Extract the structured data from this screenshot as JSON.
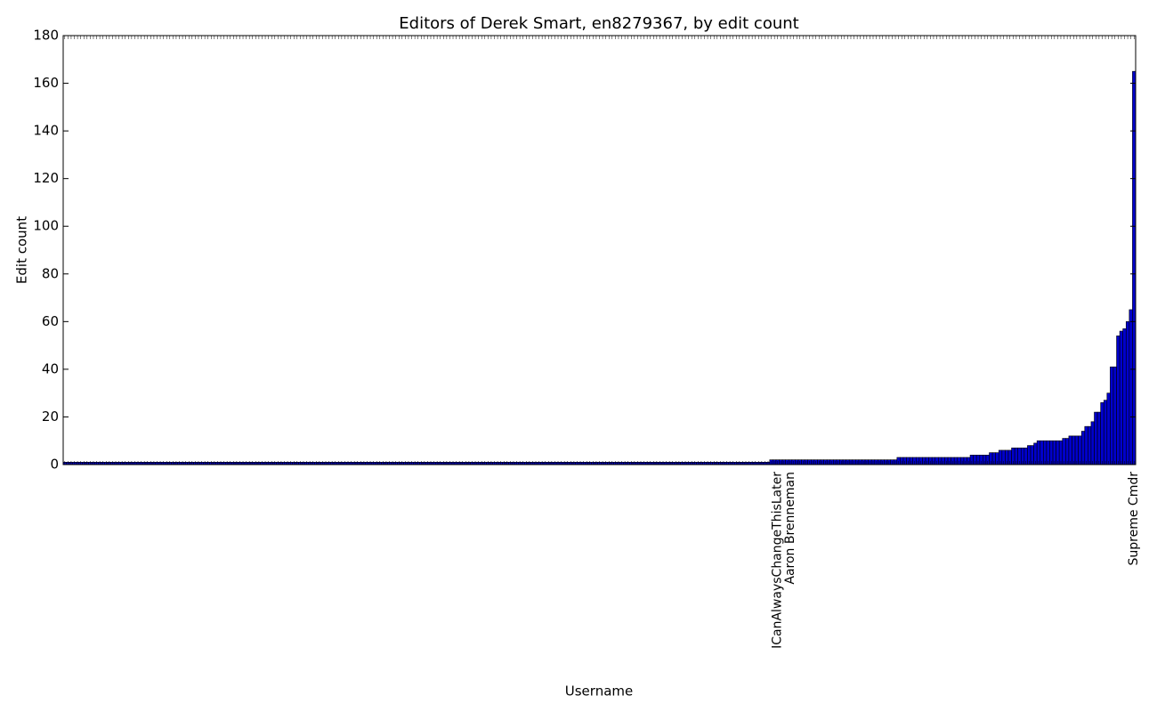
{
  "chart_data": {
    "type": "bar",
    "title": "Editors of Derek Smart, en8279367, by edit count",
    "x_label": "Username",
    "y_label": "Edit count",
    "color": "#0000cc",
    "edgecolor": "#000000",
    "ylim": [
      0,
      180
    ],
    "yticks": [
      0,
      20,
      40,
      60,
      80,
      100,
      120,
      140,
      160,
      180
    ],
    "grid": false,
    "categories": [
      null,
      null,
      null,
      null,
      null,
      null,
      null,
      null,
      null,
      null,
      null,
      null,
      null,
      null,
      null,
      null,
      null,
      null,
      null,
      null,
      null,
      null,
      null,
      null,
      null,
      null,
      null,
      null,
      null,
      null,
      null,
      null,
      null,
      null,
      null,
      null,
      null,
      null,
      null,
      null,
      null,
      null,
      null,
      null,
      null,
      null,
      null,
      null,
      null,
      null,
      null,
      null,
      null,
      null,
      null,
      null,
      null,
      null,
      null,
      null,
      null,
      null,
      null,
      null,
      null,
      null,
      null,
      null,
      null,
      null,
      null,
      null,
      null,
      null,
      null,
      null,
      null,
      null,
      null,
      null,
      null,
      null,
      null,
      null,
      null,
      null,
      null,
      null,
      null,
      null,
      null,
      null,
      null,
      null,
      null,
      null,
      null,
      null,
      null,
      null,
      null,
      null,
      null,
      null,
      null,
      null,
      null,
      null,
      null,
      null,
      null,
      null,
      null,
      null,
      null,
      null,
      null,
      null,
      null,
      null,
      null,
      null,
      null,
      null,
      null,
      null,
      null,
      null,
      null,
      null,
      null,
      null,
      null,
      null,
      null,
      null,
      null,
      null,
      null,
      null,
      null,
      null,
      null,
      null,
      null,
      null,
      null,
      null,
      null,
      null,
      null,
      null,
      null,
      null,
      null,
      null,
      null,
      null,
      null,
      null,
      null,
      null,
      null,
      null,
      null,
      null,
      null,
      null,
      null,
      null,
      null,
      null,
      null,
      null,
      null,
      null,
      null,
      null,
      null,
      null,
      null,
      null,
      null,
      null,
      null,
      null,
      null,
      null,
      null,
      null,
      null,
      null,
      null,
      null,
      null,
      null,
      null,
      null,
      null,
      null,
      null,
      null,
      null,
      null,
      null,
      null,
      null,
      null,
      null,
      null,
      null,
      null,
      null,
      null,
      null,
      null,
      null,
      null,
      null,
      null,
      null,
      null,
      null,
      null,
      "ICanAlwaysChangeThisLater",
      null,
      null,
      null,
      "Aaron Brenneman",
      null,
      null,
      null,
      null,
      null,
      null,
      null,
      null,
      null,
      null,
      null,
      null,
      null,
      null,
      null,
      null,
      null,
      null,
      null,
      null,
      null,
      null,
      null,
      null,
      null,
      null,
      null,
      null,
      null,
      null,
      null,
      null,
      null,
      null,
      null,
      null,
      null,
      null,
      null,
      null,
      null,
      null,
      null,
      null,
      null,
      null,
      null,
      null,
      null,
      null,
      null,
      null,
      null,
      null,
      null,
      null,
      null,
      null,
      null,
      null,
      null,
      null,
      null,
      null,
      null,
      null,
      null,
      null,
      null,
      null,
      null,
      null,
      null,
      null,
      null,
      null,
      null,
      null,
      null,
      null,
      null,
      null,
      null,
      null,
      null,
      null,
      null,
      null,
      null,
      null,
      null,
      null,
      null,
      null,
      null,
      null,
      null,
      null,
      null,
      null,
      null,
      null,
      null,
      null,
      null,
      null,
      null,
      "Supreme Cmdr"
    ],
    "values": [
      1,
      1,
      1,
      1,
      1,
      1,
      1,
      1,
      1,
      1,
      1,
      1,
      1,
      1,
      1,
      1,
      1,
      1,
      1,
      1,
      1,
      1,
      1,
      1,
      1,
      1,
      1,
      1,
      1,
      1,
      1,
      1,
      1,
      1,
      1,
      1,
      1,
      1,
      1,
      1,
      1,
      1,
      1,
      1,
      1,
      1,
      1,
      1,
      1,
      1,
      1,
      1,
      1,
      1,
      1,
      1,
      1,
      1,
      1,
      1,
      1,
      1,
      1,
      1,
      1,
      1,
      1,
      1,
      1,
      1,
      1,
      1,
      1,
      1,
      1,
      1,
      1,
      1,
      1,
      1,
      1,
      1,
      1,
      1,
      1,
      1,
      1,
      1,
      1,
      1,
      1,
      1,
      1,
      1,
      1,
      1,
      1,
      1,
      1,
      1,
      1,
      1,
      1,
      1,
      1,
      1,
      1,
      1,
      1,
      1,
      1,
      1,
      1,
      1,
      1,
      1,
      1,
      1,
      1,
      1,
      1,
      1,
      1,
      1,
      1,
      1,
      1,
      1,
      1,
      1,
      1,
      1,
      1,
      1,
      1,
      1,
      1,
      1,
      1,
      1,
      1,
      1,
      1,
      1,
      1,
      1,
      1,
      1,
      1,
      1,
      1,
      1,
      1,
      1,
      1,
      1,
      1,
      1,
      1,
      1,
      1,
      1,
      1,
      1,
      1,
      1,
      1,
      1,
      1,
      1,
      1,
      1,
      1,
      1,
      1,
      1,
      1,
      1,
      1,
      1,
      1,
      1,
      1,
      1,
      1,
      1,
      1,
      1,
      1,
      1,
      1,
      1,
      1,
      1,
      1,
      1,
      1,
      1,
      1,
      1,
      1,
      1,
      1,
      1,
      1,
      1,
      1,
      1,
      1,
      1,
      1,
      1,
      1,
      1,
      1,
      1,
      1,
      1,
      1,
      1,
      1,
      1,
      2,
      2,
      2,
      2,
      2,
      2,
      2,
      2,
      2,
      2,
      2,
      2,
      2,
      2,
      2,
      2,
      2,
      2,
      2,
      2,
      2,
      2,
      2,
      2,
      2,
      2,
      2,
      2,
      2,
      2,
      2,
      2,
      2,
      2,
      2,
      2,
      2,
      2,
      2,
      2,
      3,
      3,
      3,
      3,
      3,
      3,
      3,
      3,
      3,
      3,
      3,
      3,
      3,
      3,
      3,
      3,
      3,
      3,
      3,
      3,
      3,
      3,
      3,
      4,
      4,
      4,
      4,
      4,
      4,
      5,
      5,
      5,
      6,
      6,
      6,
      6,
      7,
      7,
      7,
      7,
      7,
      8,
      8,
      9,
      10,
      10,
      10,
      10,
      10,
      10,
      10,
      10,
      11,
      11,
      12,
      12,
      12,
      12,
      14,
      16,
      16,
      18,
      22,
      22,
      26,
      27,
      30,
      41,
      41,
      54,
      56,
      57,
      60,
      65,
      165
    ]
  }
}
